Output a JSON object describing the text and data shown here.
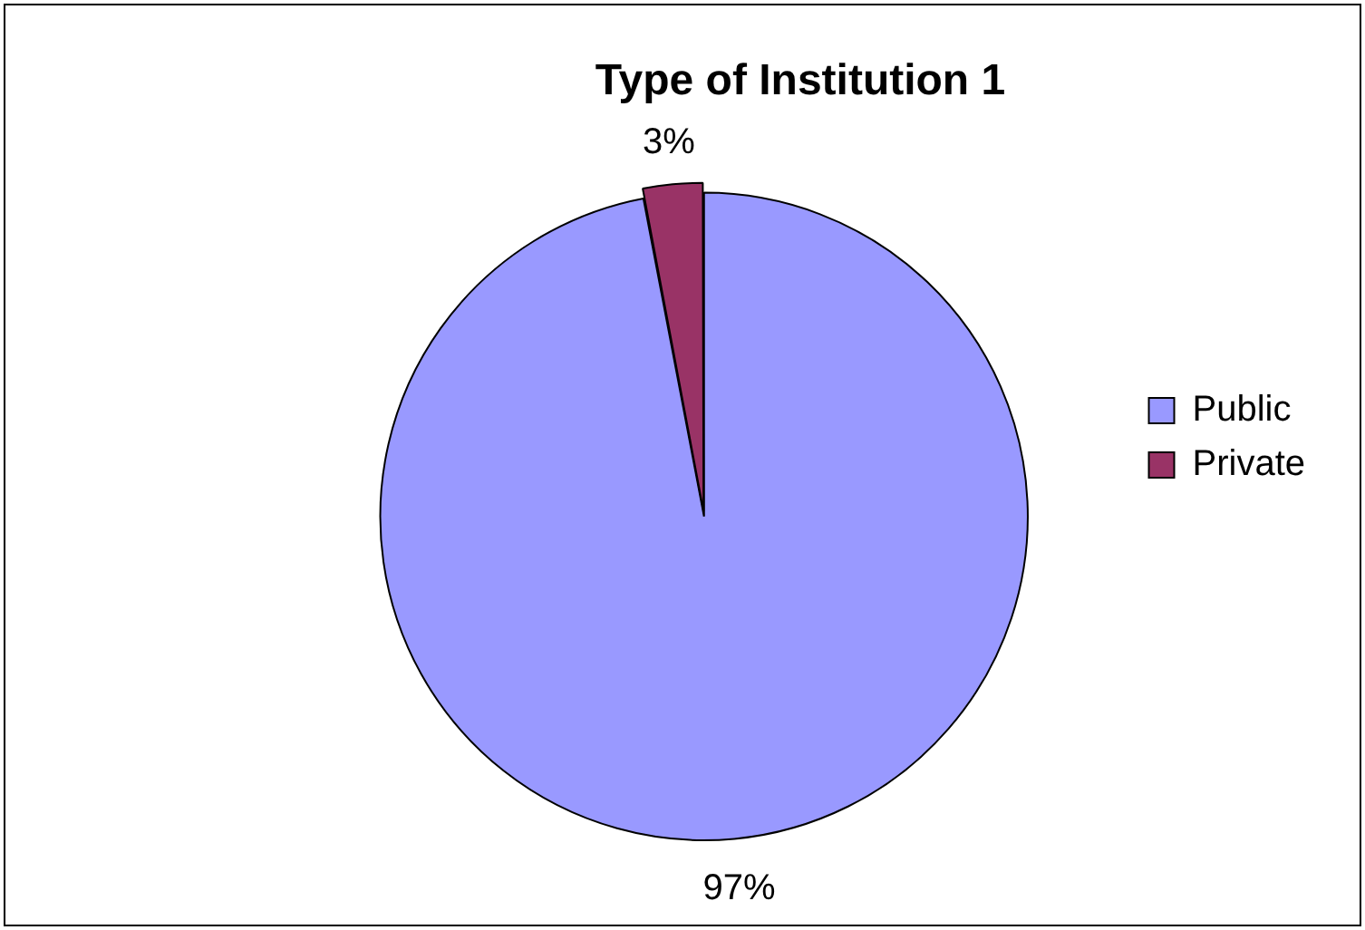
{
  "chart_data": {
    "type": "pie",
    "title": "Type of Institution 1",
    "categories": [
      "Public",
      "Private"
    ],
    "values": [
      97,
      3
    ],
    "colors": [
      "#9999ff",
      "#993366"
    ],
    "legend": "right",
    "value_labels": [
      "97%",
      "3%"
    ]
  }
}
